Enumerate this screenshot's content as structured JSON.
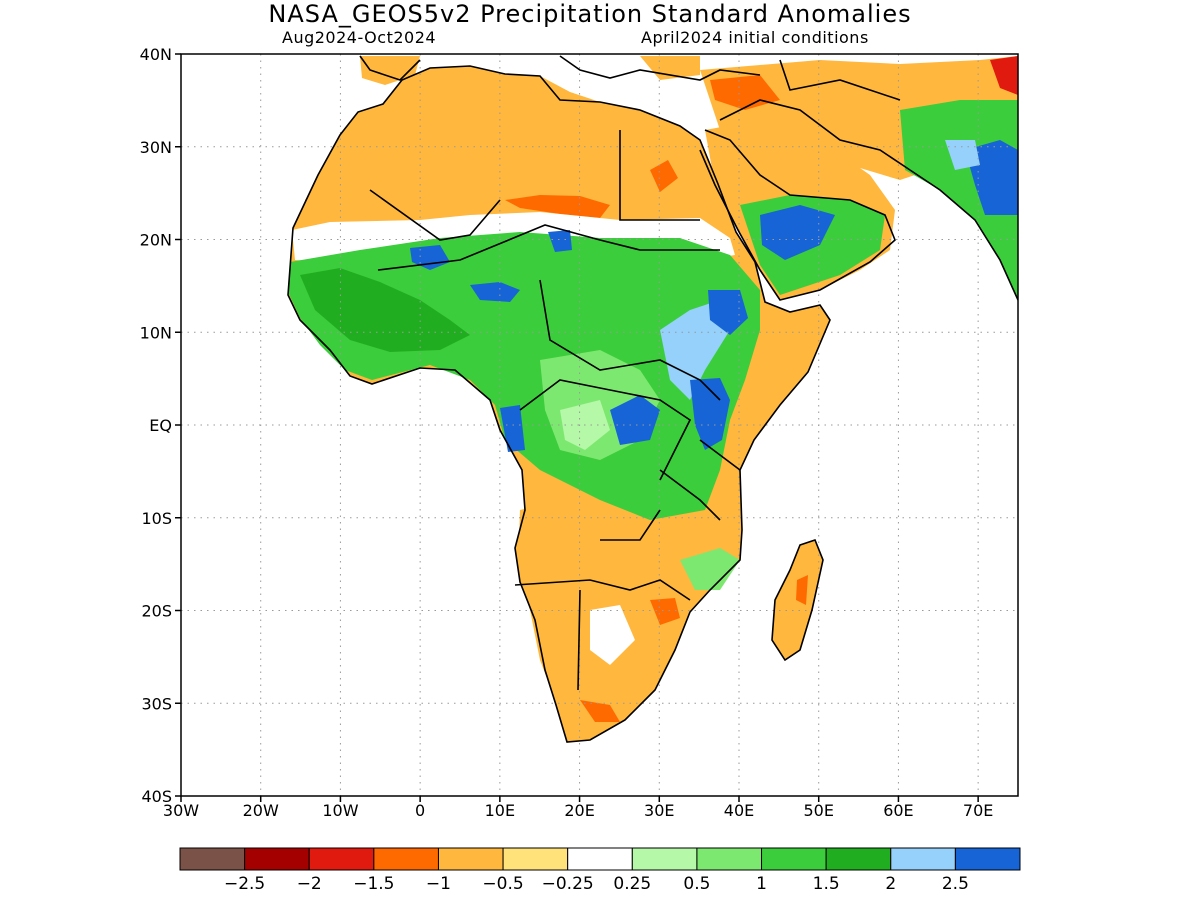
{
  "title": "NASA_GEOS5v2 Precipitation Standard Anomalies",
  "subtitle_left": "Aug2024-Oct2024",
  "subtitle_right": "April2024 initial conditions",
  "map": {
    "lon_range": [
      -30,
      75
    ],
    "lat_range": [
      -40,
      40
    ],
    "grid": true,
    "lat_labels": [
      {
        "value": 40,
        "label": "40N"
      },
      {
        "value": 30,
        "label": "30N"
      },
      {
        "value": 20,
        "label": "20N"
      },
      {
        "value": 10,
        "label": "10N"
      },
      {
        "value": 0,
        "label": "EQ"
      },
      {
        "value": -10,
        "label": "10S"
      },
      {
        "value": -20,
        "label": "20S"
      },
      {
        "value": -30,
        "label": "30S"
      },
      {
        "value": -40,
        "label": "40S"
      }
    ],
    "lon_labels": [
      {
        "value": -30,
        "label": "30W"
      },
      {
        "value": -20,
        "label": "20W"
      },
      {
        "value": -10,
        "label": "10W"
      },
      {
        "value": 0,
        "label": "0"
      },
      {
        "value": 10,
        "label": "10E"
      },
      {
        "value": 20,
        "label": "20E"
      },
      {
        "value": 30,
        "label": "30E"
      },
      {
        "value": 40,
        "label": "40E"
      },
      {
        "value": 50,
        "label": "50E"
      },
      {
        "value": 60,
        "label": "60E"
      },
      {
        "value": 70,
        "label": "70E"
      }
    ]
  },
  "colorbar": {
    "colors": [
      "#7b5247",
      "#a50000",
      "#e01a0f",
      "#ff6a00",
      "#ffb73d",
      "#ffe27a",
      "#ffffff",
      "#b4f8a8",
      "#7de870",
      "#3bcd3b",
      "#20ae20",
      "#95d1fa",
      "#1664d6"
    ],
    "labels": [
      "-2.5",
      "-2",
      "-1.5",
      "-1",
      "-0.5",
      "-0.25",
      "0.25",
      "0.5",
      "1",
      "1.5",
      "2",
      "2.5"
    ]
  }
}
